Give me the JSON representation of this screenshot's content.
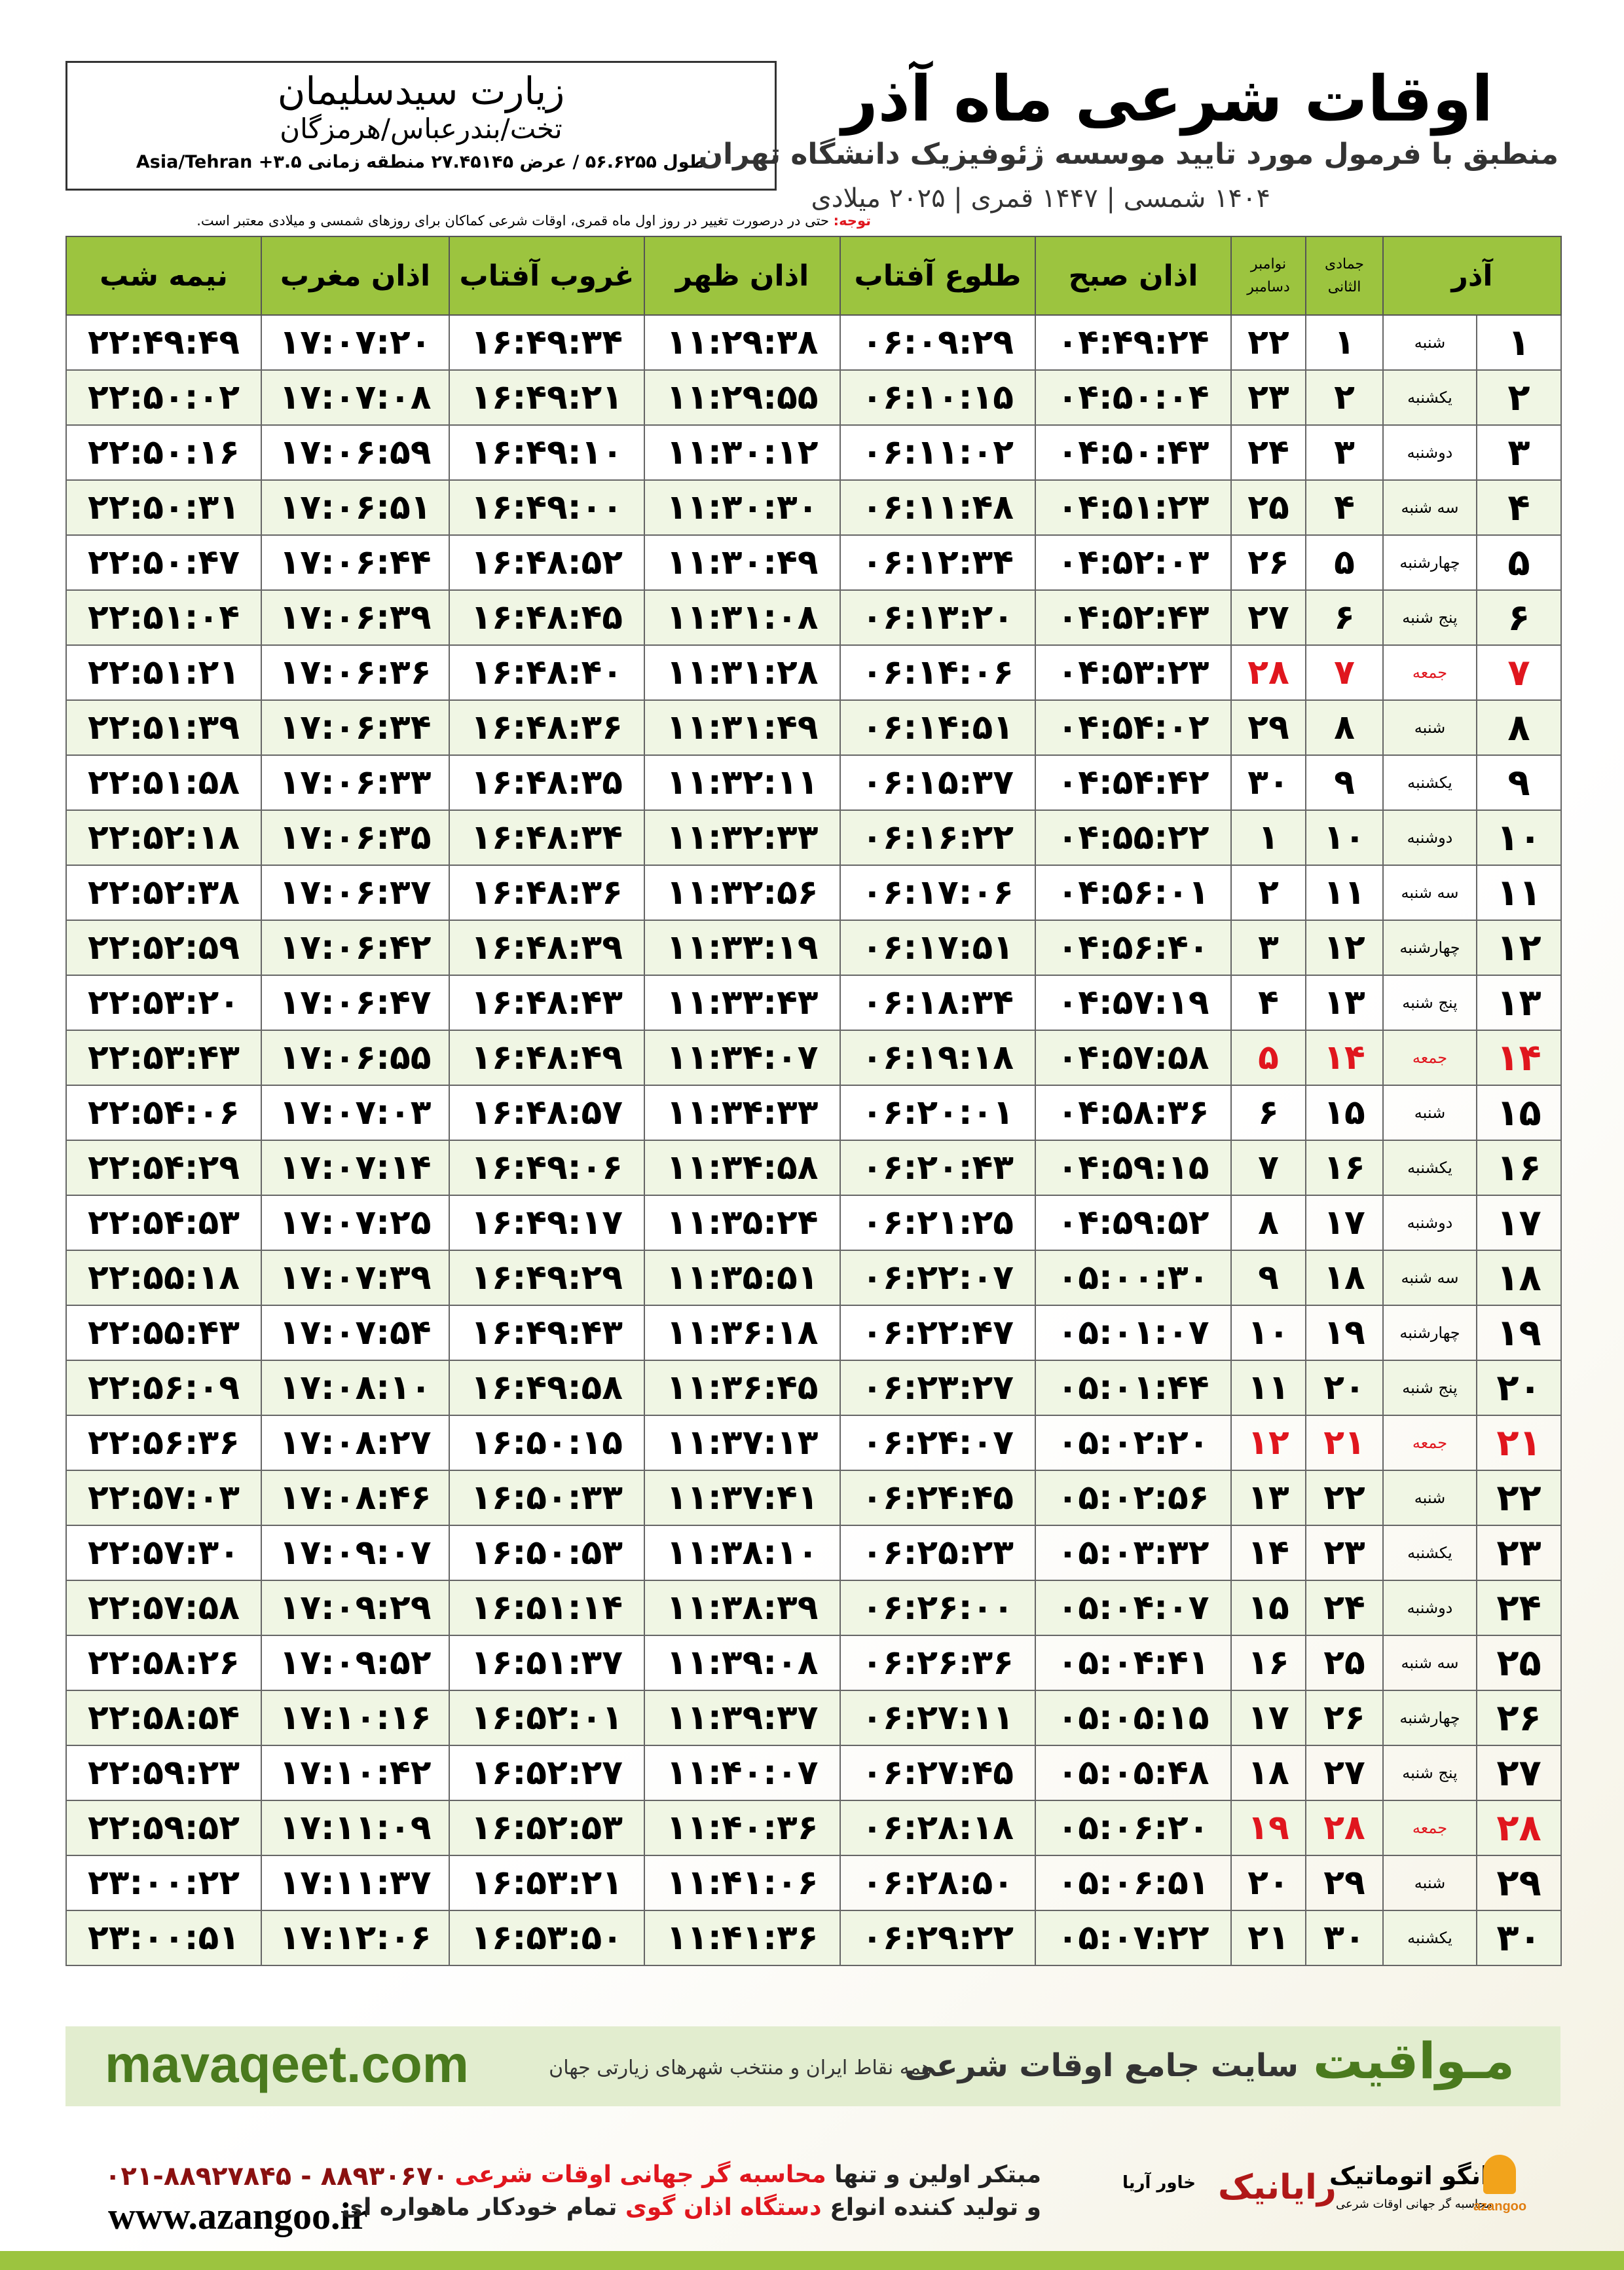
{
  "header": {
    "title": "اوقات شرعی ماه آذر",
    "subtitle": "منطبق با فرمول مورد تایید موسسه ژئوفیزیک دانشگاه تهران",
    "years": "۱۴۰۴ شمسی | ۱۴۴۷ قمری | ۲۰۲۵ میلادی"
  },
  "location": {
    "name": "زیارت سیدسلیمان",
    "region": "تخت/بندرعباس/هرمزگان",
    "coords": "طول ۵۶.۶۲۵۵ / عرض ۲۷.۴۵۱۴۵ منطقه زمانی ۳.۵+ Asia/Tehran"
  },
  "note": {
    "label": "توجه:",
    "text": "حتی در درصورت تغییر در روز اول ماه قمری، اوقات شرعی کماکان برای روزهای شمسی و میلادی معتبر است."
  },
  "table": {
    "headers": {
      "month": "آذر",
      "hijri_month": "جمادی الثانی",
      "gregorian_months": [
        "نوامبر",
        "دسامبر"
      ],
      "times": [
        "اذان صبح",
        "طلوع آفتاب",
        "اذان ظهر",
        "غروب آفتاب",
        "اذان مغرب",
        "نیمه شب"
      ]
    },
    "rows": [
      {
        "color": "#000000",
        "cells": [
          "۱",
          "شنبه",
          "۱",
          "۲۲",
          "۰۴:۴۹:۲۴",
          "۰۶:۰۹:۲۹",
          "۱۱:۲۹:۳۸",
          "۱۶:۴۹:۳۴",
          "۱۷:۰۷:۲۰",
          "۲۲:۴۹:۴۹"
        ]
      },
      {
        "color": "#000000",
        "cells": [
          "۲",
          "یکشنبه",
          "۲",
          "۲۳",
          "۰۴:۵۰:۰۴",
          "۰۶:۱۰:۱۵",
          "۱۱:۲۹:۵۵",
          "۱۶:۴۹:۲۱",
          "۱۷:۰۷:۰۸",
          "۲۲:۵۰:۰۲"
        ]
      },
      {
        "color": "#000000",
        "cells": [
          "۳",
          "دوشنبه",
          "۳",
          "۲۴",
          "۰۴:۵۰:۴۳",
          "۰۶:۱۱:۰۲",
          "۱۱:۳۰:۱۲",
          "۱۶:۴۹:۱۰",
          "۱۷:۰۶:۵۹",
          "۲۲:۵۰:۱۶"
        ]
      },
      {
        "color": "#000000",
        "cells": [
          "۴",
          "سه شنبه",
          "۴",
          "۲۵",
          "۰۴:۵۱:۲۳",
          "۰۶:۱۱:۴۸",
          "۱۱:۳۰:۳۰",
          "۱۶:۴۹:۰۰",
          "۱۷:۰۶:۵۱",
          "۲۲:۵۰:۳۱"
        ]
      },
      {
        "color": "#000000",
        "cells": [
          "۵",
          "چهارشنبه",
          "۵",
          "۲۶",
          "۰۴:۵۲:۰۳",
          "۰۶:۱۲:۳۴",
          "۱۱:۳۰:۴۹",
          "۱۶:۴۸:۵۲",
          "۱۷:۰۶:۴۴",
          "۲۲:۵۰:۴۷"
        ]
      },
      {
        "color": "#000000",
        "cells": [
          "۶",
          "پنج شنبه",
          "۶",
          "۲۷",
          "۰۴:۵۲:۴۳",
          "۰۶:۱۳:۲۰",
          "۱۱:۳۱:۰۸",
          "۱۶:۴۸:۴۵",
          "۱۷:۰۶:۳۹",
          "۲۲:۵۱:۰۴"
        ]
      },
      {
        "color": "#e0161e",
        "cells": [
          "۷",
          "جمعه",
          "۷",
          "۲۸",
          "۰۴:۵۳:۲۳",
          "۰۶:۱۴:۰۶",
          "۱۱:۳۱:۲۸",
          "۱۶:۴۸:۴۰",
          "۱۷:۰۶:۳۶",
          "۲۲:۵۱:۲۱"
        ]
      },
      {
        "color": "#000000",
        "cells": [
          "۸",
          "شنبه",
          "۸",
          "۲۹",
          "۰۴:۵۴:۰۲",
          "۰۶:۱۴:۵۱",
          "۱۱:۳۱:۴۹",
          "۱۶:۴۸:۳۶",
          "۱۷:۰۶:۳۴",
          "۲۲:۵۱:۳۹"
        ]
      },
      {
        "color": "#000000",
        "cells": [
          "۹",
          "یکشنبه",
          "۹",
          "۳۰",
          "۰۴:۵۴:۴۲",
          "۰۶:۱۵:۳۷",
          "۱۱:۳۲:۱۱",
          "۱۶:۴۸:۳۵",
          "۱۷:۰۶:۳۳",
          "۲۲:۵۱:۵۸"
        ]
      },
      {
        "color": "#000000",
        "cells": [
          "۱۰",
          "دوشنبه",
          "۱۰",
          "۱",
          "۰۴:۵۵:۲۲",
          "۰۶:۱۶:۲۲",
          "۱۱:۳۲:۳۳",
          "۱۶:۴۸:۳۴",
          "۱۷:۰۶:۳۵",
          "۲۲:۵۲:۱۸"
        ]
      },
      {
        "color": "#000000",
        "cells": [
          "۱۱",
          "سه شنبه",
          "۱۱",
          "۲",
          "۰۴:۵۶:۰۱",
          "۰۶:۱۷:۰۶",
          "۱۱:۳۲:۵۶",
          "۱۶:۴۸:۳۶",
          "۱۷:۰۶:۳۷",
          "۲۲:۵۲:۳۸"
        ]
      },
      {
        "color": "#000000",
        "cells": [
          "۱۲",
          "چهارشنبه",
          "۱۲",
          "۳",
          "۰۴:۵۶:۴۰",
          "۰۶:۱۷:۵۱",
          "۱۱:۳۳:۱۹",
          "۱۶:۴۸:۳۹",
          "۱۷:۰۶:۴۲",
          "۲۲:۵۲:۵۹"
        ]
      },
      {
        "color": "#000000",
        "cells": [
          "۱۳",
          "پنج شنبه",
          "۱۳",
          "۴",
          "۰۴:۵۷:۱۹",
          "۰۶:۱۸:۳۴",
          "۱۱:۳۳:۴۳",
          "۱۶:۴۸:۴۳",
          "۱۷:۰۶:۴۷",
          "۲۲:۵۳:۲۰"
        ]
      },
      {
        "color": "#e0161e",
        "cells": [
          "۱۴",
          "جمعه",
          "۱۴",
          "۵",
          "۰۴:۵۷:۵۸",
          "۰۶:۱۹:۱۸",
          "۱۱:۳۴:۰۷",
          "۱۶:۴۸:۴۹",
          "۱۷:۰۶:۵۵",
          "۲۲:۵۳:۴۳"
        ]
      },
      {
        "color": "#000000",
        "cells": [
          "۱۵",
          "شنبه",
          "۱۵",
          "۶",
          "۰۴:۵۸:۳۶",
          "۰۶:۲۰:۰۱",
          "۱۱:۳۴:۳۳",
          "۱۶:۴۸:۵۷",
          "۱۷:۰۷:۰۳",
          "۲۲:۵۴:۰۶"
        ]
      },
      {
        "color": "#000000",
        "cells": [
          "۱۶",
          "یکشنبه",
          "۱۶",
          "۷",
          "۰۴:۵۹:۱۵",
          "۰۶:۲۰:۴۳",
          "۱۱:۳۴:۵۸",
          "۱۶:۴۹:۰۶",
          "۱۷:۰۷:۱۴",
          "۲۲:۵۴:۲۹"
        ]
      },
      {
        "color": "#000000",
        "cells": [
          "۱۷",
          "دوشنبه",
          "۱۷",
          "۸",
          "۰۴:۵۹:۵۲",
          "۰۶:۲۱:۲۵",
          "۱۱:۳۵:۲۴",
          "۱۶:۴۹:۱۷",
          "۱۷:۰۷:۲۵",
          "۲۲:۵۴:۵۳"
        ]
      },
      {
        "color": "#000000",
        "cells": [
          "۱۸",
          "سه شنبه",
          "۱۸",
          "۹",
          "۰۵:۰۰:۳۰",
          "۰۶:۲۲:۰۷",
          "۱۱:۳۵:۵۱",
          "۱۶:۴۹:۲۹",
          "۱۷:۰۷:۳۹",
          "۲۲:۵۵:۱۸"
        ]
      },
      {
        "color": "#000000",
        "cells": [
          "۱۹",
          "چهارشنبه",
          "۱۹",
          "۱۰",
          "۰۵:۰۱:۰۷",
          "۰۶:۲۲:۴۷",
          "۱۱:۳۶:۱۸",
          "۱۶:۴۹:۴۳",
          "۱۷:۰۷:۵۴",
          "۲۲:۵۵:۴۳"
        ]
      },
      {
        "color": "#000000",
        "cells": [
          "۲۰",
          "پنج شنبه",
          "۲۰",
          "۱۱",
          "۰۵:۰۱:۴۴",
          "۰۶:۲۳:۲۷",
          "۱۱:۳۶:۴۵",
          "۱۶:۴۹:۵۸",
          "۱۷:۰۸:۱۰",
          "۲۲:۵۶:۰۹"
        ]
      },
      {
        "color": "#e0161e",
        "cells": [
          "۲۱",
          "جمعه",
          "۲۱",
          "۱۲",
          "۰۵:۰۲:۲۰",
          "۰۶:۲۴:۰۷",
          "۱۱:۳۷:۱۳",
          "۱۶:۵۰:۱۵",
          "۱۷:۰۸:۲۷",
          "۲۲:۵۶:۳۶"
        ]
      },
      {
        "color": "#000000",
        "cells": [
          "۲۲",
          "شنبه",
          "۲۲",
          "۱۳",
          "۰۵:۰۲:۵۶",
          "۰۶:۲۴:۴۵",
          "۱۱:۳۷:۴۱",
          "۱۶:۵۰:۳۳",
          "۱۷:۰۸:۴۶",
          "۲۲:۵۷:۰۳"
        ]
      },
      {
        "color": "#000000",
        "cells": [
          "۲۳",
          "یکشنبه",
          "۲۳",
          "۱۴",
          "۰۵:۰۳:۳۲",
          "۰۶:۲۵:۲۳",
          "۱۱:۳۸:۱۰",
          "۱۶:۵۰:۵۳",
          "۱۷:۰۹:۰۷",
          "۲۲:۵۷:۳۰"
        ]
      },
      {
        "color": "#000000",
        "cells": [
          "۲۴",
          "دوشنبه",
          "۲۴",
          "۱۵",
          "۰۵:۰۴:۰۷",
          "۰۶:۲۶:۰۰",
          "۱۱:۳۸:۳۹",
          "۱۶:۵۱:۱۴",
          "۱۷:۰۹:۲۹",
          "۲۲:۵۷:۵۸"
        ]
      },
      {
        "color": "#000000",
        "cells": [
          "۲۵",
          "سه شنبه",
          "۲۵",
          "۱۶",
          "۰۵:۰۴:۴۱",
          "۰۶:۲۶:۳۶",
          "۱۱:۳۹:۰۸",
          "۱۶:۵۱:۳۷",
          "۱۷:۰۹:۵۲",
          "۲۲:۵۸:۲۶"
        ]
      },
      {
        "color": "#000000",
        "cells": [
          "۲۶",
          "چهارشنبه",
          "۲۶",
          "۱۷",
          "۰۵:۰۵:۱۵",
          "۰۶:۲۷:۱۱",
          "۱۱:۳۹:۳۷",
          "۱۶:۵۲:۰۱",
          "۱۷:۱۰:۱۶",
          "۲۲:۵۸:۵۴"
        ]
      },
      {
        "color": "#000000",
        "cells": [
          "۲۷",
          "پنج شنبه",
          "۲۷",
          "۱۸",
          "۰۵:۰۵:۴۸",
          "۰۶:۲۷:۴۵",
          "۱۱:۴۰:۰۷",
          "۱۶:۵۲:۲۷",
          "۱۷:۱۰:۴۲",
          "۲۲:۵۹:۲۳"
        ]
      },
      {
        "color": "#e0161e",
        "cells": [
          "۲۸",
          "جمعه",
          "۲۸",
          "۱۹",
          "۰۵:۰۶:۲۰",
          "۰۶:۲۸:۱۸",
          "۱۱:۴۰:۳۶",
          "۱۶:۵۲:۵۳",
          "۱۷:۱۱:۰۹",
          "۲۲:۵۹:۵۲"
        ]
      },
      {
        "color": "#000000",
        "cells": [
          "۲۹",
          "شنبه",
          "۲۹",
          "۲۰",
          "۰۵:۰۶:۵۱",
          "۰۶:۲۸:۵۰",
          "۱۱:۴۱:۰۶",
          "۱۶:۵۳:۲۱",
          "۱۷:۱۱:۳۷",
          "۲۳:۰۰:۲۲"
        ]
      },
      {
        "color": "#000000",
        "cells": [
          "۳۰",
          "یکشنبه",
          "۳۰",
          "۲۱",
          "۰۵:۰۷:۲۲",
          "۰۶:۲۹:۲۲",
          "۱۱:۴۱:۳۶",
          "۱۶:۵۳:۵۰",
          "۱۷:۱۲:۰۶",
          "۲۳:۰۰:۵۱"
        ]
      }
    ]
  },
  "banner": {
    "brand": "مـواقیت",
    "slogan": "سایت جامع اوقات شرعی",
    "tagline": "همه نقاط ایران و منتخب شهرهای زیارتی جهان",
    "url": "mavaqeet.com"
  },
  "footer": {
    "phones": "۰۲۱-۸۸۹۲۷۸۴۵ - ۸۸۹۳۰۶۷۰",
    "website": "www.azangoo.ir",
    "line1": [
      "مبتکر اولین و تنها",
      "محاسبه گر جهانی اوقات شرعی"
    ],
    "line2": [
      "و تولید کننده انواع",
      "دستگاه اذان گوی",
      "تمام خودکار ماهواره ای"
    ],
    "logo_raianik": "رایانیک",
    "logo_khavar": "خاور آریا",
    "logo_azangoo": "اذانگو اتوماتیک",
    "logo_azangoo_sub": "محاسبه گر جهانی اوقات شرعی",
    "logo_azangoo_en": "azangoo"
  }
}
